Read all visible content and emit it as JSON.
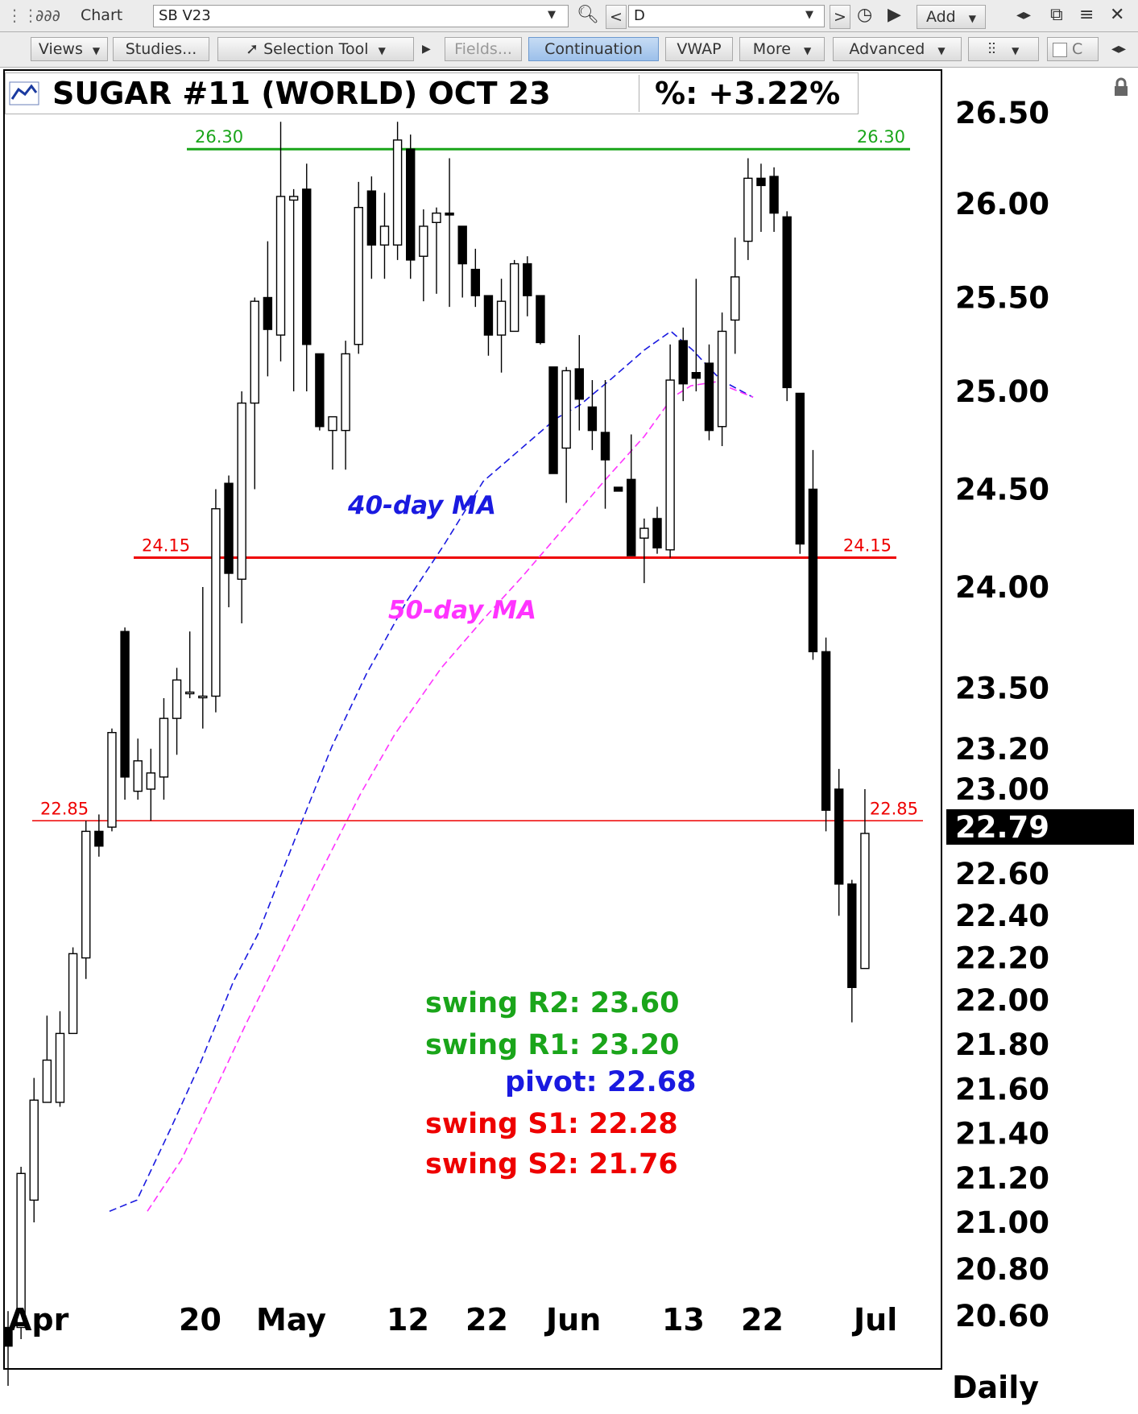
{
  "toolbar_top": {
    "app_label": "Chart",
    "symbol_value": "SB V23",
    "period_value": "D",
    "add_label": "Add",
    "back_arrow": "<",
    "forward_arrow": ">"
  },
  "toolbar_second": {
    "views": "Views",
    "studies": "Studies...",
    "selection_tool": "Selection Tool",
    "fields": "Fields...",
    "continuation": "Continuation",
    "vwap": "VWAP",
    "more": "More",
    "advanced": "Advanced",
    "checkbox_label": "C"
  },
  "chart": {
    "title": "SUGAR #11 (WORLD) OCT 23",
    "percent_change": "%: +3.22%",
    "current_price": "22.79",
    "period_label": "Daily"
  },
  "chart_data": {
    "type": "candlestick",
    "y_ticks": [
      "26.50",
      "26.00",
      "25.50",
      "25.00",
      "24.50",
      "24.00",
      "23.50",
      "23.20",
      "23.00",
      "22.60",
      "22.40",
      "22.20",
      "22.00",
      "21.80",
      "21.60",
      "21.40",
      "21.20",
      "21.00",
      "20.80",
      "20.60"
    ],
    "x_ticks": [
      "Apr",
      "20",
      "May",
      "12",
      "22",
      "Jun",
      "13",
      "22",
      "Jul"
    ],
    "horizontal_lines": [
      {
        "value": 26.3,
        "label": "26.30",
        "color": "#1aa51a"
      },
      {
        "value": 24.15,
        "label": "24.15",
        "color": "#ee0000"
      },
      {
        "value": 22.85,
        "label": "22.85",
        "color": "#ee0000"
      }
    ],
    "annotations": {
      "ma40": "40-day MA",
      "ma50": "50-day MA",
      "r2": "swing R2:  23.60",
      "r1": "swing R1:  23.20",
      "pivot": "pivot: 22.68",
      "s1": "swing S1:  22.28",
      "s2": "swing S2:  21.76"
    },
    "colors": {
      "ma40": "#1a1ae0",
      "ma50": "#ff33ff",
      "resistance": "#1aa51a",
      "support": "#ee0000",
      "pivot": "#1a1ae0"
    },
    "candles": [
      {
        "o": 20.55,
        "h": 20.62,
        "l": 20.3,
        "c": 20.47
      },
      {
        "o": 20.55,
        "h": 21.25,
        "l": 20.5,
        "c": 21.22
      },
      {
        "o": 21.1,
        "h": 21.65,
        "l": 21.0,
        "c": 21.55
      },
      {
        "o": 21.54,
        "h": 21.93,
        "l": 21.54,
        "c": 21.73
      },
      {
        "o": 21.54,
        "h": 21.95,
        "l": 21.52,
        "c": 21.85
      },
      {
        "o": 21.85,
        "h": 22.25,
        "l": 21.85,
        "c": 22.22
      },
      {
        "o": 22.2,
        "h": 22.85,
        "l": 22.1,
        "c": 22.8
      },
      {
        "o": 22.8,
        "h": 22.88,
        "l": 22.68,
        "c": 22.73
      },
      {
        "o": 22.82,
        "h": 23.3,
        "l": 22.8,
        "c": 23.28
      },
      {
        "o": 23.78,
        "h": 23.8,
        "l": 22.95,
        "c": 23.06
      },
      {
        "o": 22.99,
        "h": 23.25,
        "l": 22.95,
        "c": 23.14
      },
      {
        "o": 23.0,
        "h": 23.2,
        "l": 22.85,
        "c": 23.08
      },
      {
        "o": 23.06,
        "h": 23.45,
        "l": 22.95,
        "c": 23.35
      },
      {
        "o": 23.35,
        "h": 23.6,
        "l": 23.17,
        "c": 23.54
      },
      {
        "o": 23.48,
        "h": 23.78,
        "l": 23.45,
        "c": 23.48
      },
      {
        "o": 23.46,
        "h": 24.0,
        "l": 23.3,
        "c": 23.46
      },
      {
        "o": 23.46,
        "h": 24.5,
        "l": 23.38,
        "c": 24.4
      },
      {
        "o": 24.53,
        "h": 24.57,
        "l": 23.9,
        "c": 24.07
      },
      {
        "o": 24.04,
        "h": 25.0,
        "l": 23.82,
        "c": 24.94
      },
      {
        "o": 24.94,
        "h": 25.5,
        "l": 24.5,
        "c": 25.48
      },
      {
        "o": 25.5,
        "h": 25.8,
        "l": 25.08,
        "c": 25.33
      },
      {
        "o": 25.3,
        "h": 26.45,
        "l": 25.16,
        "c": 26.04
      },
      {
        "o": 26.02,
        "h": 26.08,
        "l": 25.0,
        "c": 26.04
      },
      {
        "o": 26.08,
        "h": 26.22,
        "l": 25.0,
        "c": 25.25
      },
      {
        "o": 25.2,
        "h": 25.2,
        "l": 24.8,
        "c": 24.82
      },
      {
        "o": 24.8,
        "h": 24.86,
        "l": 24.6,
        "c": 24.87
      },
      {
        "o": 24.8,
        "h": 25.27,
        "l": 24.6,
        "c": 25.2
      },
      {
        "o": 25.25,
        "h": 26.12,
        "l": 25.2,
        "c": 25.98
      },
      {
        "o": 26.07,
        "h": 26.15,
        "l": 25.6,
        "c": 25.78
      },
      {
        "o": 25.78,
        "h": 26.06,
        "l": 25.6,
        "c": 25.88
      },
      {
        "o": 25.78,
        "h": 26.45,
        "l": 25.7,
        "c": 26.35
      },
      {
        "o": 26.3,
        "h": 26.38,
        "l": 25.6,
        "c": 25.7
      },
      {
        "o": 25.72,
        "h": 25.97,
        "l": 25.48,
        "c": 25.88
      },
      {
        "o": 25.9,
        "h": 25.98,
        "l": 25.52,
        "c": 25.95
      },
      {
        "o": 25.95,
        "h": 26.25,
        "l": 25.45,
        "c": 25.94
      },
      {
        "o": 25.88,
        "h": 25.88,
        "l": 25.5,
        "c": 25.68
      },
      {
        "o": 25.65,
        "h": 25.76,
        "l": 25.45,
        "c": 25.51
      },
      {
        "o": 25.51,
        "h": 25.51,
        "l": 25.19,
        "c": 25.3
      },
      {
        "o": 25.3,
        "h": 25.6,
        "l": 25.1,
        "c": 25.48
      },
      {
        "o": 25.32,
        "h": 25.7,
        "l": 25.32,
        "c": 25.68
      },
      {
        "o": 25.68,
        "h": 25.72,
        "l": 25.4,
        "c": 25.51
      },
      {
        "o": 25.51,
        "h": 25.51,
        "l": 25.25,
        "c": 25.26
      },
      {
        "o": 25.13,
        "h": 25.13,
        "l": 24.62,
        "c": 24.58
      },
      {
        "o": 24.71,
        "h": 25.13,
        "l": 24.43,
        "c": 25.11
      },
      {
        "o": 25.12,
        "h": 25.3,
        "l": 24.8,
        "c": 24.96
      },
      {
        "o": 24.92,
        "h": 25.06,
        "l": 24.7,
        "c": 24.8
      },
      {
        "o": 24.79,
        "h": 25.06,
        "l": 24.4,
        "c": 24.65
      },
      {
        "o": 24.51,
        "h": 24.51,
        "l": 24.5,
        "c": 24.49
      },
      {
        "o": 24.55,
        "h": 24.78,
        "l": 24.16,
        "c": 24.16
      },
      {
        "o": 24.25,
        "h": 24.35,
        "l": 24.02,
        "c": 24.3
      },
      {
        "o": 24.35,
        "h": 24.41,
        "l": 24.17,
        "c": 24.2
      },
      {
        "o": 24.19,
        "h": 25.25,
        "l": 24.15,
        "c": 25.06
      },
      {
        "o": 25.27,
        "h": 25.34,
        "l": 24.95,
        "c": 25.04
      },
      {
        "o": 25.1,
        "h": 25.6,
        "l": 25.0,
        "c": 25.07
      },
      {
        "o": 25.15,
        "h": 25.25,
        "l": 24.75,
        "c": 24.8
      },
      {
        "o": 24.82,
        "h": 25.42,
        "l": 24.72,
        "c": 25.32
      },
      {
        "o": 25.38,
        "h": 25.82,
        "l": 25.2,
        "c": 25.61
      },
      {
        "o": 25.8,
        "h": 26.25,
        "l": 25.7,
        "c": 26.14
      },
      {
        "o": 26.14,
        "h": 26.22,
        "l": 25.85,
        "c": 26.1
      },
      {
        "o": 26.15,
        "h": 26.2,
        "l": 25.85,
        "c": 25.95
      },
      {
        "o": 25.93,
        "h": 25.96,
        "l": 24.95,
        "c": 25.02
      },
      {
        "o": 24.99,
        "h": 24.99,
        "l": 24.17,
        "c": 24.22
      },
      {
        "o": 24.5,
        "h": 24.7,
        "l": 23.64,
        "c": 23.68
      },
      {
        "o": 23.68,
        "h": 23.75,
        "l": 22.8,
        "c": 22.9
      },
      {
        "o": 23.0,
        "h": 23.1,
        "l": 22.4,
        "c": 22.55
      },
      {
        "o": 22.55,
        "h": 22.57,
        "l": 21.9,
        "c": 22.06
      },
      {
        "o": 22.15,
        "h": 23.0,
        "l": 22.15,
        "c": 22.79
      }
    ],
    "ma40": [
      [
        136,
        21.05
      ],
      [
        170,
        21.1
      ],
      [
        213,
        21.43
      ],
      [
        248,
        21.71
      ],
      [
        290,
        22.09
      ],
      [
        320,
        22.31
      ],
      [
        370,
        22.8
      ],
      [
        412,
        23.21
      ],
      [
        455,
        23.57
      ],
      [
        505,
        23.93
      ],
      [
        552,
        24.22
      ],
      [
        600,
        24.54
      ],
      [
        645,
        24.7
      ],
      [
        690,
        24.86
      ],
      [
        720,
        24.93
      ],
      [
        760,
        25.07
      ],
      [
        800,
        25.22
      ],
      [
        833,
        25.32
      ],
      [
        860,
        25.22
      ],
      [
        895,
        25.06
      ],
      [
        935,
        24.97
      ]
    ],
    "ma50": [
      [
        183,
        21.05
      ],
      [
        225,
        21.28
      ],
      [
        265,
        21.58
      ],
      [
        305,
        21.89
      ],
      [
        346,
        22.2
      ],
      [
        400,
        22.62
      ],
      [
        448,
        22.98
      ],
      [
        490,
        23.27
      ],
      [
        548,
        23.6
      ],
      [
        600,
        23.84
      ],
      [
        650,
        24.06
      ],
      [
        700,
        24.3
      ],
      [
        752,
        24.55
      ],
      [
        800,
        24.77
      ],
      [
        835,
        24.97
      ],
      [
        858,
        25.03
      ],
      [
        888,
        25.05
      ],
      [
        935,
        24.97
      ]
    ]
  }
}
